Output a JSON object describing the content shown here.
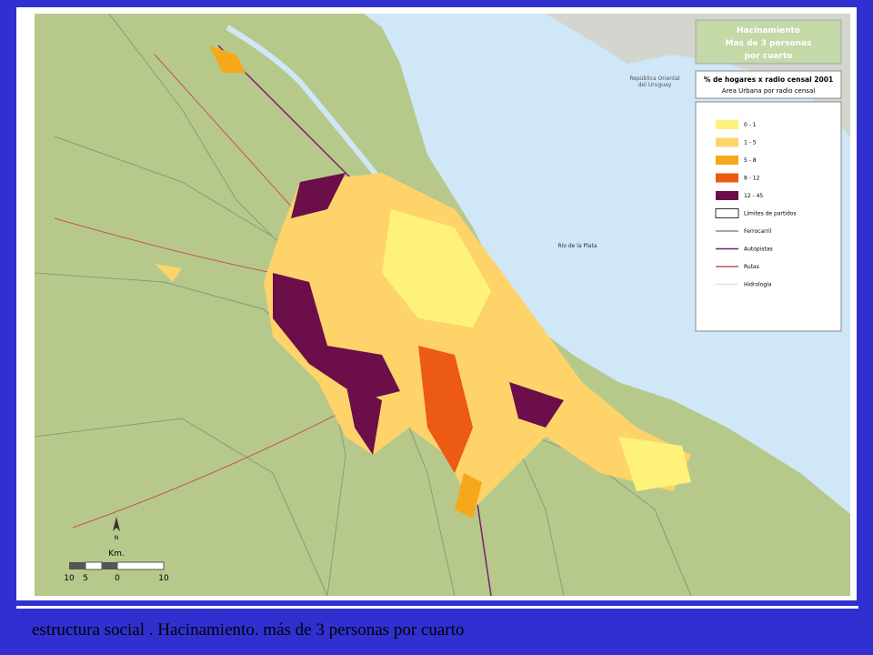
{
  "legend": {
    "title_lines": [
      "Hacinamiento",
      "Mas de 3 personas",
      "por cuarto"
    ],
    "subtitle": "% de hogares x radio censal 2001",
    "subtitle2": "Area Urbana por radio censal",
    "items": [
      {
        "label": "0 - 1",
        "color": "#fff27a",
        "kind": "fill"
      },
      {
        "label": "1 - 5",
        "color": "#fdd36a",
        "kind": "fill"
      },
      {
        "label": "5 - 8",
        "color": "#f6a81c",
        "kind": "fill"
      },
      {
        "label": "8 - 12",
        "color": "#ec5a14",
        "kind": "fill"
      },
      {
        "label": "12 - 45",
        "color": "#6b0e4a",
        "kind": "fill"
      },
      {
        "label": "Límites de partidos",
        "color": "#ffffff",
        "kind": "outline"
      },
      {
        "label": "Ferrocarril",
        "color": "#8a8a8a",
        "kind": "line"
      },
      {
        "label": "Autopistas",
        "color": "#7a1f6e",
        "kind": "line"
      },
      {
        "label": "Rutas",
        "color": "#c8505a",
        "kind": "line"
      },
      {
        "label": "Hidrología",
        "color": "#d8e6f0",
        "kind": "line"
      }
    ]
  },
  "map": {
    "country_label": [
      "República Oriental",
      "del Uruguay"
    ],
    "water_label": "Río de la Plata",
    "north": "N",
    "scale_unit": "Km.",
    "scale_ticks": [
      "10",
      "5",
      "0",
      "10"
    ]
  },
  "caption": "estructura social . Hacinamiento. más de 3 personas por cuarto"
}
